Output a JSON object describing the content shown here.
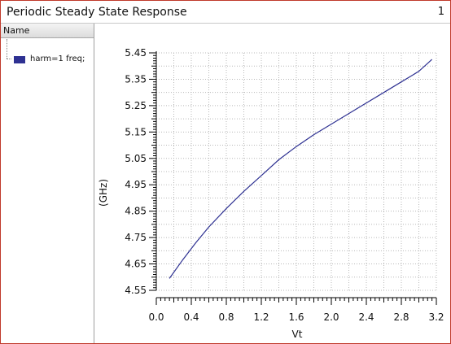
{
  "window": {
    "title": "Periodic Steady State Response",
    "page_number": "1"
  },
  "sidebar": {
    "header": "Name",
    "legend": [
      {
        "label": "harm=1 freq;",
        "color": "#2e3192"
      }
    ]
  },
  "chart_data": {
    "type": "line",
    "title": "",
    "xlabel": "Vt",
    "ylabel": "(GHz)",
    "xlim": [
      0.0,
      3.2
    ],
    "ylim": [
      4.55,
      5.45
    ],
    "x_ticks": [
      "0.0",
      "0.4",
      "0.8",
      "1.2",
      "1.6",
      "2.0",
      "2.4",
      "2.8",
      "3.2"
    ],
    "y_ticks": [
      "5.45",
      "5.35",
      "5.25",
      "5.15",
      "5.05",
      "4.95",
      "4.85",
      "4.75",
      "4.65",
      "4.55"
    ],
    "grid": true,
    "series": [
      {
        "name": "harm=1 freq;",
        "color": "#2e3192",
        "x": [
          0.15,
          0.3,
          0.45,
          0.6,
          0.8,
          1.0,
          1.2,
          1.4,
          1.6,
          1.8,
          2.0,
          2.2,
          2.4,
          2.6,
          2.8,
          3.0,
          3.15
        ],
        "y": [
          4.595,
          4.665,
          4.73,
          4.79,
          4.86,
          4.925,
          4.985,
          5.045,
          5.095,
          5.14,
          5.18,
          5.22,
          5.26,
          5.3,
          5.34,
          5.38,
          5.425
        ]
      }
    ]
  }
}
